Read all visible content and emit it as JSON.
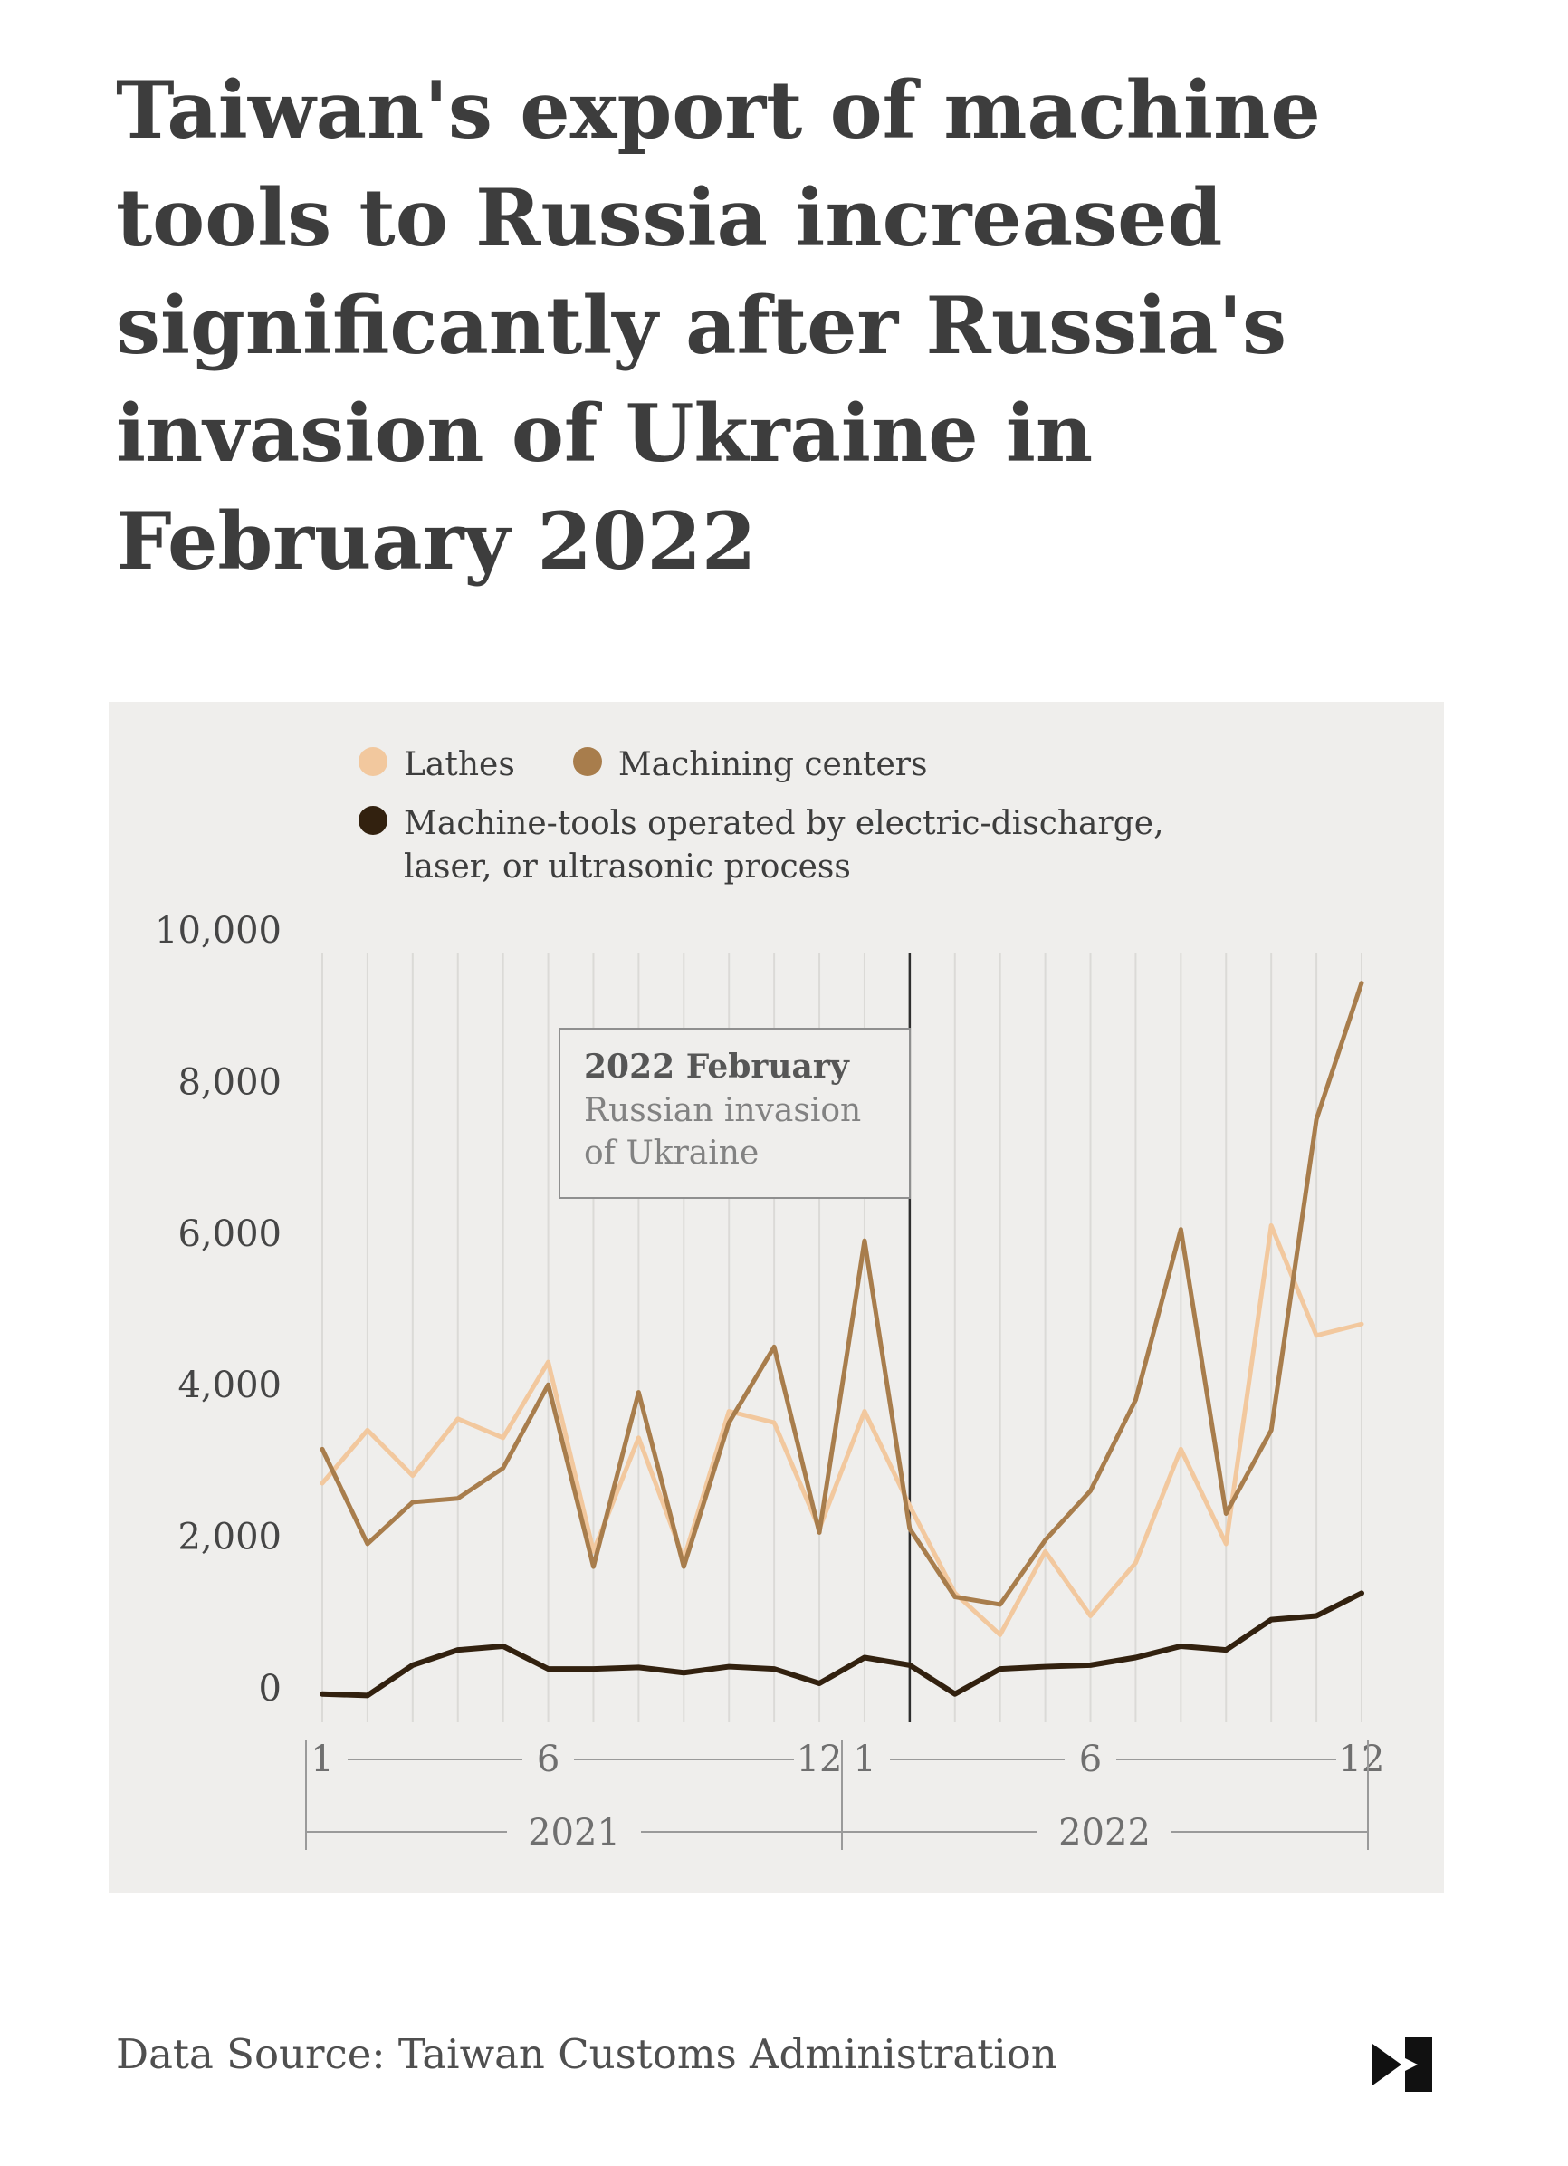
{
  "header": {
    "title": "Taiwan's export of machine tools to Russia increased significantly after Russia's invasion of Ukraine in February 2022",
    "title_lines": [
      "Taiwan's export of machine",
      "tools to Russia increased",
      "significantly after Russia's",
      "invasion of Ukraine in",
      "February 2022"
    ]
  },
  "legend": {
    "items": [
      {
        "label": "Lathes",
        "color": "#f2c89e"
      },
      {
        "label": "Machining centers",
        "color": "#a87d4c"
      },
      {
        "label": "Machine-tools operated by electric-discharge, laser, or ultrasonic process",
        "color": "#32210f"
      }
    ]
  },
  "annotation": {
    "heading": "2022 February",
    "body": "Russian invasion of Ukraine"
  },
  "chart_data": {
    "type": "line",
    "months": [
      1,
      2,
      3,
      4,
      5,
      6,
      7,
      8,
      9,
      10,
      11,
      12,
      1,
      2,
      3,
      4,
      5,
      6,
      7,
      8,
      9,
      10,
      11,
      12
    ],
    "years": [
      "2021",
      "2022"
    ],
    "y_ticks": [
      0,
      2000,
      4000,
      6000,
      8000,
      10000
    ],
    "ylim": [
      -450,
      10000
    ],
    "x_tick_positions": [
      0,
      5,
      11,
      12,
      17,
      23
    ],
    "x_tick_labels": [
      "1",
      "6",
      "12",
      "1",
      "6",
      "12"
    ],
    "grid": "vertical-monthly",
    "legend_position": "top-left",
    "event_marker": {
      "month_index": 13,
      "year": "2022",
      "month": "February",
      "description": "Russian invasion of Ukraine"
    },
    "series": [
      {
        "name": "Lathes",
        "color": "#f2c89e",
        "values": [
          2700,
          3400,
          2800,
          3550,
          3300,
          4300,
          1800,
          3300,
          1700,
          3650,
          3500,
          2100,
          3650,
          2400,
          1250,
          700,
          1800,
          950,
          1650,
          3150,
          1900,
          6100,
          4650,
          4800
        ]
      },
      {
        "name": "Machining centers",
        "color": "#a87d4c",
        "values": [
          3150,
          1900,
          2450,
          2500,
          2900,
          4000,
          1600,
          3900,
          1600,
          3500,
          4500,
          2050,
          5900,
          2100,
          1200,
          1100,
          1950,
          2600,
          3800,
          6050,
          2300,
          3400,
          7500,
          9300
        ]
      },
      {
        "name": "Machine-tools operated by electric-discharge, laser, or ultrasonic process",
        "color": "#32210f",
        "values": [
          -80,
          -100,
          300,
          500,
          550,
          250,
          250,
          270,
          200,
          280,
          250,
          60,
          400,
          300,
          -80,
          250,
          280,
          300,
          400,
          550,
          500,
          900,
          950,
          1250
        ]
      }
    ]
  },
  "footer": {
    "source": "Data Source: Taiwan Customs Administration",
    "logo": "publisher-play-flag-logo"
  }
}
